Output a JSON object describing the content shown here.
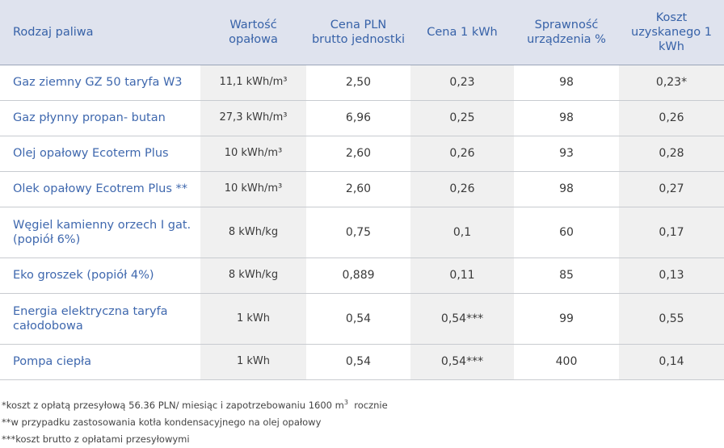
{
  "table": {
    "headers": [
      "Rodzaj paliwa",
      "Wartość opałowa",
      "Cena PLN brutto jednostki",
      "Cena 1 kWh",
      "Sprawność urządzenia %",
      "Koszt uzyskanego 1 kWh"
    ],
    "rows": [
      {
        "name": "Gaz ziemny GZ 50 taryfa W3",
        "calorific": "11,1 kWh/m³",
        "price_unit": "2,50",
        "price_kwh": "0,23",
        "efficiency": "98",
        "cost_kwh": "0,23*"
      },
      {
        "name": "Gaz płynny propan- butan",
        "calorific": "27,3 kWh/m³",
        "price_unit": "6,96",
        "price_kwh": "0,25",
        "efficiency": "98",
        "cost_kwh": "0,26"
      },
      {
        "name": "Olej opałowy Ecoterm Plus",
        "calorific": "10 kWh/m³",
        "price_unit": "2,60",
        "price_kwh": "0,26",
        "efficiency": "93",
        "cost_kwh": "0,28"
      },
      {
        "name": "Olek opałowy Ecotrem Plus **",
        "calorific": "10 kWh/m³",
        "price_unit": "2,60",
        "price_kwh": "0,26",
        "efficiency": "98",
        "cost_kwh": "0,27"
      },
      {
        "name": "Węgiel kamienny orzech I gat. (popiół 6%)",
        "calorific": "8 kWh/kg",
        "price_unit": "0,75",
        "price_kwh": "0,1",
        "efficiency": "60",
        "cost_kwh": "0,17"
      },
      {
        "name": "Eko groszek (popiół 4%)",
        "calorific": "8 kWh/kg",
        "price_unit": "0,889",
        "price_kwh": "0,11",
        "efficiency": "85",
        "cost_kwh": "0,13"
      },
      {
        "name": "Energia elektryczna taryfa całodobowa",
        "calorific": "1 kWh",
        "price_unit": "0,54",
        "price_kwh": "0,54***",
        "efficiency": "99",
        "cost_kwh": "0,55"
      },
      {
        "name": "Pompa ciepła",
        "calorific": "1 kWh",
        "price_unit": "0,54",
        "price_kwh": "0,54***",
        "efficiency": "400",
        "cost_kwh": "0,14"
      }
    ]
  },
  "footnotes": {
    "note1_before": "*koszt z opłatą przesyłową 56.36 PLN/ miesiąc i zapotrzebowaniu 1600 m",
    "note1_sup": "3",
    "note1_after": "  rocznie",
    "note2": "**w przypadku zastosowania kotła kondensacyjnego na olej opałowy",
    "note3": "***koszt brutto z opłatami przesyłowymi"
  },
  "colors": {
    "header_bg": "#dfe3ee",
    "header_text": "#3762a8",
    "name_text": "#3f68ae",
    "shade": "#f0f0f0"
  }
}
